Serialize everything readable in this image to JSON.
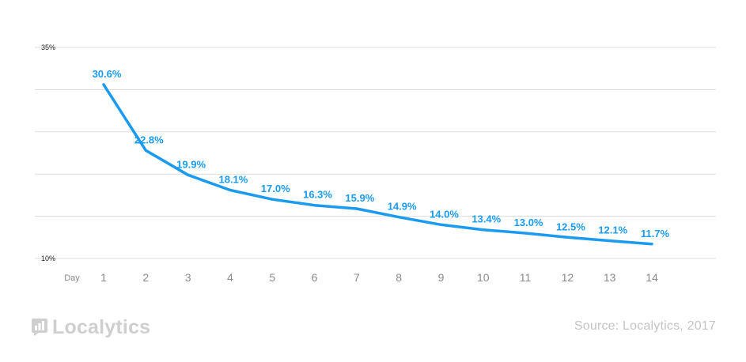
{
  "chart_data": {
    "type": "line",
    "title": "",
    "xlabel": "Day",
    "ylabel": "",
    "x": [
      1,
      2,
      3,
      4,
      5,
      6,
      7,
      8,
      9,
      10,
      11,
      12,
      13,
      14
    ],
    "series": [
      {
        "values": [
          30.6,
          22.8,
          19.9,
          18.1,
          17.0,
          16.3,
          15.9,
          14.9,
          14.0,
          13.4,
          13.0,
          12.5,
          12.1,
          11.7
        ]
      }
    ],
    "point_labels": [
      "30.6%",
      "22.8%",
      "19.9%",
      "18.1%",
      "17.0%",
      "16.3%",
      "15.9%",
      "14.9%",
      "14.0%",
      "13.4%",
      "13.0%",
      "12.5%",
      "12.1%",
      "11.7%"
    ],
    "ylim": [
      10,
      35
    ],
    "y_tick_values": [
      10,
      15,
      20,
      25,
      30,
      35
    ],
    "y_tick_labels": [
      "10%",
      "",
      "",
      "",
      "",
      "35%"
    ],
    "x_tick_labels": [
      "1",
      "2",
      "3",
      "4",
      "5",
      "6",
      "7",
      "8",
      "9",
      "10",
      "11",
      "12",
      "13",
      "14"
    ],
    "grid": true,
    "line_color": "#1a9bf0",
    "label_color": "#1a9bf0"
  },
  "branding": {
    "logo_text": "Localytics",
    "source": "Source: Localytics, 2017"
  }
}
